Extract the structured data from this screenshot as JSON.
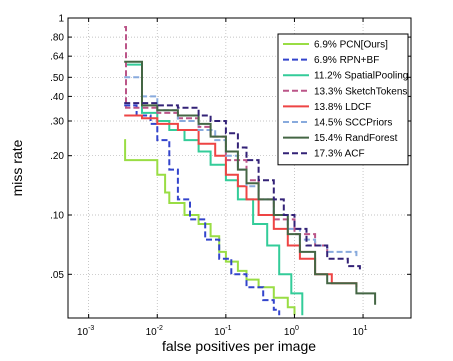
{
  "chart_data": {
    "type": "line",
    "title": "",
    "xlabel": "false positives per image",
    "ylabel": "miss rate",
    "xscale": "log",
    "yscale": "log",
    "xlim": [
      0.0005,
      50
    ],
    "ylim": [
      0.03,
      1
    ],
    "grid": true,
    "legend_position": "top-right",
    "x_ticks": [
      {
        "value": 0.001,
        "base": "10",
        "exp": "-3"
      },
      {
        "value": 0.01,
        "base": "10",
        "exp": "-2"
      },
      {
        "value": 0.1,
        "base": "10",
        "exp": "-1"
      },
      {
        "value": 1,
        "base": "10",
        "exp": "0"
      },
      {
        "value": 10,
        "base": "10",
        "exp": "1"
      }
    ],
    "y_ticks": [
      {
        "value": 1,
        "label": "1"
      },
      {
        "value": 0.8,
        "label": ".80"
      },
      {
        "value": 0.64,
        "label": ".64"
      },
      {
        "value": 0.5,
        "label": ".50"
      },
      {
        "value": 0.4,
        "label": ".40"
      },
      {
        "value": 0.3,
        "label": ".30"
      },
      {
        "value": 0.2,
        "label": ".20"
      },
      {
        "value": 0.1,
        "label": ".10"
      },
      {
        "value": 0.05,
        "label": ".05"
      }
    ],
    "series": [
      {
        "name": "6.9% PCN[Ours]",
        "color": "#99dd44",
        "dash": "solid",
        "points": [
          [
            0.0033,
            0.24
          ],
          [
            0.0034,
            0.19
          ],
          [
            0.007,
            0.19
          ],
          [
            0.01,
            0.16
          ],
          [
            0.013,
            0.13
          ],
          [
            0.015,
            0.115
          ],
          [
            0.025,
            0.1
          ],
          [
            0.04,
            0.09
          ],
          [
            0.06,
            0.078
          ],
          [
            0.08,
            0.065
          ],
          [
            0.1,
            0.058
          ],
          [
            0.15,
            0.052
          ],
          [
            0.2,
            0.047
          ],
          [
            0.3,
            0.043
          ],
          [
            0.5,
            0.038
          ],
          [
            0.8,
            0.034
          ],
          [
            1.0,
            0.031
          ]
        ]
      },
      {
        "name": "6.9% RPN+BF",
        "color": "#3344cc",
        "dash": "dashed",
        "points": [
          [
            0.0033,
            0.36
          ],
          [
            0.005,
            0.32
          ],
          [
            0.008,
            0.29
          ],
          [
            0.01,
            0.24
          ],
          [
            0.015,
            0.17
          ],
          [
            0.02,
            0.12
          ],
          [
            0.03,
            0.095
          ],
          [
            0.05,
            0.075
          ],
          [
            0.08,
            0.06
          ],
          [
            0.12,
            0.05
          ],
          [
            0.2,
            0.043
          ],
          [
            0.35,
            0.037
          ],
          [
            0.5,
            0.033
          ],
          [
            0.6,
            0.031
          ]
        ]
      },
      {
        "name": "11.2% SpatialPooling",
        "color": "#33cc99",
        "dash": "solid",
        "points": [
          [
            0.0035,
            0.58
          ],
          [
            0.0055,
            0.58
          ],
          [
            0.006,
            0.33
          ],
          [
            0.01,
            0.3
          ],
          [
            0.015,
            0.27
          ],
          [
            0.025,
            0.24
          ],
          [
            0.04,
            0.21
          ],
          [
            0.06,
            0.18
          ],
          [
            0.1,
            0.15
          ],
          [
            0.15,
            0.12
          ],
          [
            0.25,
            0.09
          ],
          [
            0.4,
            0.07
          ],
          [
            0.6,
            0.05
          ],
          [
            0.9,
            0.04
          ],
          [
            1.3,
            0.031
          ]
        ]
      },
      {
        "name": "13.3% SketchTokens",
        "color": "#bb5588",
        "dash": "dashed",
        "points": [
          [
            0.0033,
            0.9
          ],
          [
            0.0035,
            0.35
          ],
          [
            0.01,
            0.33
          ],
          [
            0.02,
            0.31
          ],
          [
            0.04,
            0.28
          ],
          [
            0.06,
            0.25
          ],
          [
            0.1,
            0.19
          ],
          [
            0.2,
            0.15
          ],
          [
            0.3,
            0.12
          ],
          [
            0.5,
            0.095
          ],
          [
            1.0,
            0.08
          ],
          [
            2,
            0.07
          ],
          [
            3,
            0.065
          ]
        ]
      },
      {
        "name": "13.8% LDCF",
        "color": "#ee4444",
        "dash": "solid",
        "points": [
          [
            0.0033,
            0.32
          ],
          [
            0.006,
            0.31
          ],
          [
            0.01,
            0.29
          ],
          [
            0.02,
            0.27
          ],
          [
            0.04,
            0.23
          ],
          [
            0.07,
            0.2
          ],
          [
            0.1,
            0.16
          ],
          [
            0.15,
            0.14
          ],
          [
            0.2,
            0.12
          ],
          [
            0.3,
            0.1
          ],
          [
            0.5,
            0.085
          ],
          [
            0.8,
            0.07
          ],
          [
            1.2,
            0.06
          ],
          [
            2,
            0.05
          ],
          [
            3.5,
            0.045
          ],
          [
            8,
            0.043
          ]
        ]
      },
      {
        "name": "14.5% SCCPriors",
        "color": "#88aadd",
        "dash": "dashed",
        "points": [
          [
            0.0033,
            0.5
          ],
          [
            0.006,
            0.4
          ],
          [
            0.01,
            0.34
          ],
          [
            0.02,
            0.3
          ],
          [
            0.04,
            0.27
          ],
          [
            0.07,
            0.24
          ],
          [
            0.1,
            0.2
          ],
          [
            0.15,
            0.17
          ],
          [
            0.2,
            0.14
          ],
          [
            0.3,
            0.12
          ],
          [
            0.5,
            0.1
          ],
          [
            0.8,
            0.085
          ],
          [
            1.2,
            0.075
          ],
          [
            2,
            0.07
          ],
          [
            3,
            0.065
          ],
          [
            8,
            0.06
          ]
        ]
      },
      {
        "name": "15.4% RandForest",
        "color": "#446644",
        "dash": "solid",
        "points": [
          [
            0.0033,
            0.6
          ],
          [
            0.0055,
            0.6
          ],
          [
            0.006,
            0.36
          ],
          [
            0.01,
            0.34
          ],
          [
            0.02,
            0.32
          ],
          [
            0.04,
            0.29
          ],
          [
            0.06,
            0.25
          ],
          [
            0.1,
            0.21
          ],
          [
            0.15,
            0.17
          ],
          [
            0.2,
            0.145
          ],
          [
            0.3,
            0.12
          ],
          [
            0.5,
            0.1
          ],
          [
            0.8,
            0.08
          ],
          [
            1.2,
            0.065
          ],
          [
            2,
            0.05
          ],
          [
            3,
            0.045
          ],
          [
            8,
            0.04
          ],
          [
            15,
            0.035
          ]
        ]
      },
      {
        "name": "17.3% ACF",
        "color": "#332277",
        "dash": "dashed",
        "points": [
          [
            0.0033,
            0.37
          ],
          [
            0.01,
            0.36
          ],
          [
            0.02,
            0.35
          ],
          [
            0.04,
            0.32
          ],
          [
            0.06,
            0.3
          ],
          [
            0.1,
            0.26
          ],
          [
            0.15,
            0.22
          ],
          [
            0.2,
            0.19
          ],
          [
            0.3,
            0.15
          ],
          [
            0.5,
            0.12
          ],
          [
            0.7,
            0.1
          ],
          [
            1.0,
            0.085
          ],
          [
            1.5,
            0.07
          ],
          [
            3,
            0.06
          ],
          [
            6,
            0.055
          ],
          [
            9,
            0.052
          ]
        ]
      }
    ]
  }
}
